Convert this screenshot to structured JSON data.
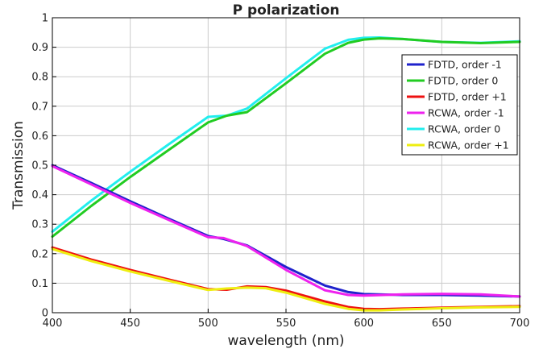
{
  "chart_data": {
    "type": "line",
    "title": "P polarization",
    "xlabel": "wavelength (nm)",
    "ylabel": "Transmission",
    "xlim": [
      400,
      700
    ],
    "ylim": [
      0,
      1
    ],
    "xticks": [
      400,
      450,
      500,
      550,
      600,
      650,
      700
    ],
    "yticks": [
      0,
      0.1,
      0.2,
      0.3,
      0.4,
      0.5,
      0.6,
      0.7,
      0.8,
      0.9,
      1
    ],
    "ytick_labels": [
      "0",
      "0.1",
      "0.2",
      "0.3",
      "0.4",
      "0.5",
      "0.6",
      "0.7",
      "0.8",
      "0.9",
      "1"
    ],
    "grid": true,
    "legend_position": "top-right",
    "series": [
      {
        "name": "RCWA, order 0",
        "color": "#22eeee",
        "x": [
          400,
          425,
          450,
          475,
          500,
          512,
          525,
          550,
          575,
          590,
          600,
          610,
          625,
          650,
          675,
          700
        ],
        "y": [
          0.275,
          0.38,
          0.478,
          0.572,
          0.664,
          0.668,
          0.692,
          0.795,
          0.895,
          0.925,
          0.932,
          0.933,
          0.928,
          0.918,
          0.915,
          0.92
        ]
      },
      {
        "name": "FDTD, order 0",
        "color": "#22cc22",
        "x": [
          400,
          425,
          450,
          475,
          500,
          512,
          525,
          550,
          575,
          590,
          600,
          610,
          625,
          650,
          675,
          700
        ],
        "y": [
          0.258,
          0.362,
          0.46,
          0.553,
          0.645,
          0.668,
          0.68,
          0.778,
          0.878,
          0.915,
          0.926,
          0.93,
          0.928,
          0.918,
          0.914,
          0.918
        ]
      },
      {
        "name": "FDTD, order -1",
        "color": "#1f22cc",
        "x": [
          400,
          425,
          450,
          475,
          500,
          510,
          525,
          550,
          575,
          590,
          600,
          625,
          650,
          675,
          700
        ],
        "y": [
          0.5,
          0.44,
          0.378,
          0.318,
          0.26,
          0.25,
          0.228,
          0.155,
          0.092,
          0.07,
          0.063,
          0.06,
          0.06,
          0.058,
          0.055
        ]
      },
      {
        "name": "RCWA, order -1",
        "color": "#ee22ee",
        "x": [
          400,
          425,
          450,
          475,
          500,
          510,
          525,
          550,
          575,
          590,
          600,
          625,
          650,
          675,
          700
        ],
        "y": [
          0.497,
          0.435,
          0.372,
          0.314,
          0.256,
          0.253,
          0.226,
          0.145,
          0.076,
          0.06,
          0.058,
          0.062,
          0.064,
          0.062,
          0.055
        ]
      },
      {
        "name": "FDTD, order +1",
        "color": "#ee1111",
        "x": [
          400,
          425,
          450,
          475,
          500,
          512,
          525,
          537,
          550,
          575,
          590,
          600,
          610,
          625,
          650,
          675,
          700
        ],
        "y": [
          0.221,
          0.18,
          0.145,
          0.112,
          0.08,
          0.078,
          0.089,
          0.087,
          0.075,
          0.038,
          0.019,
          0.013,
          0.012,
          0.014,
          0.017,
          0.02,
          0.022
        ]
      },
      {
        "name": "RCWA, order +1",
        "color": "#eeee11",
        "x": [
          400,
          425,
          450,
          475,
          500,
          512,
          525,
          537,
          550,
          575,
          590,
          600,
          610,
          625,
          650,
          675,
          700
        ],
        "y": [
          0.216,
          0.175,
          0.14,
          0.108,
          0.077,
          0.082,
          0.085,
          0.083,
          0.068,
          0.03,
          0.013,
          0.008,
          0.008,
          0.011,
          0.015,
          0.018,
          0.02
        ]
      }
    ],
    "legend_order": [
      "FDTD, order -1",
      "FDTD, order 0",
      "FDTD, order +1",
      "RCWA, order -1",
      "RCWA, order 0",
      "RCWA, order +1"
    ]
  }
}
